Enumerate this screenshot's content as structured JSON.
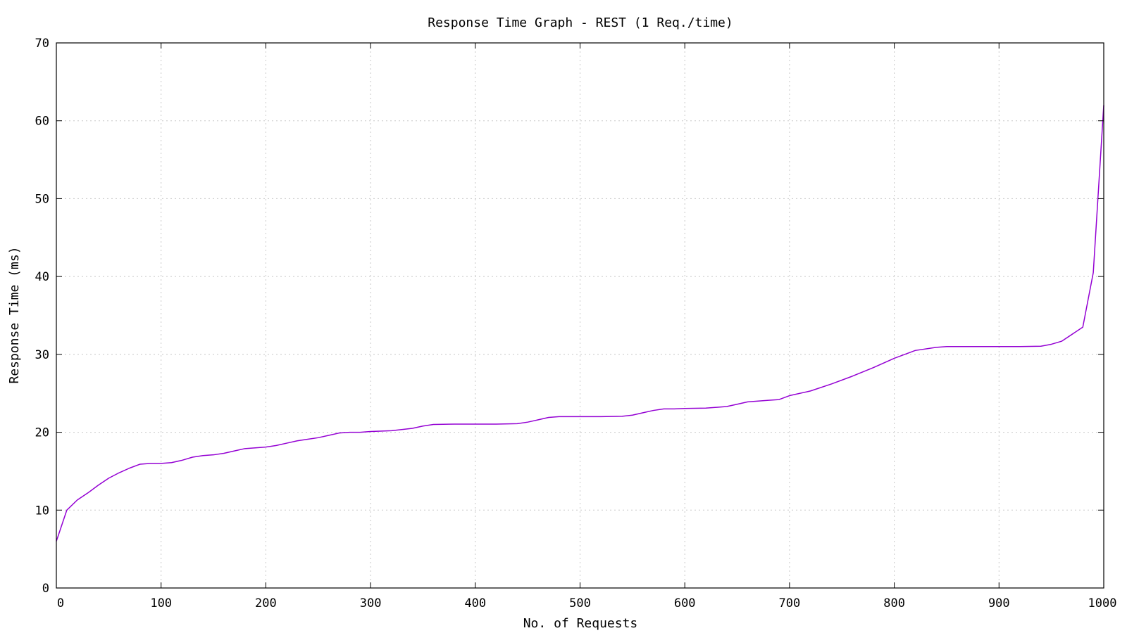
{
  "chart_data": {
    "type": "line",
    "title": "Response Time Graph - REST (1 Req./time)",
    "xlabel": "No. of Requests",
    "ylabel": "Response Time (ms)",
    "xlim": [
      0,
      1000
    ],
    "ylim": [
      0,
      70
    ],
    "xticks": [
      0,
      100,
      200,
      300,
      400,
      500,
      600,
      700,
      800,
      900,
      1000
    ],
    "yticks": [
      0,
      10,
      20,
      30,
      40,
      50,
      60,
      70
    ],
    "grid": true,
    "legend": "none",
    "series": [
      {
        "color": "#9400d3",
        "x": [
          0,
          10,
          20,
          30,
          40,
          50,
          60,
          70,
          80,
          90,
          100,
          110,
          120,
          130,
          140,
          150,
          160,
          170,
          180,
          190,
          200,
          210,
          220,
          230,
          240,
          250,
          260,
          270,
          280,
          290,
          300,
          320,
          340,
          350,
          360,
          380,
          400,
          420,
          440,
          450,
          460,
          470,
          480,
          490,
          500,
          520,
          540,
          550,
          560,
          570,
          580,
          590,
          600,
          620,
          640,
          650,
          660,
          670,
          680,
          690,
          700,
          720,
          740,
          760,
          780,
          800,
          820,
          840,
          850,
          860,
          880,
          900,
          920,
          940,
          950,
          960,
          980,
          990,
          1000
        ],
        "y": [
          6,
          10,
          11.3,
          12.2,
          13.2,
          14.1,
          14.8,
          15.4,
          15.9,
          16,
          16,
          16.1,
          16.4,
          16.8,
          17,
          17.1,
          17.3,
          17.6,
          17.9,
          18,
          18.1,
          18.3,
          18.6,
          18.9,
          19.1,
          19.3,
          19.6,
          19.9,
          20,
          20,
          20.1,
          20.2,
          20.5,
          20.8,
          21,
          21.05,
          21.05,
          21.05,
          21.1,
          21.3,
          21.6,
          21.9,
          22,
          22,
          22,
          22,
          22.05,
          22.2,
          22.5,
          22.8,
          23,
          23,
          23.05,
          23.1,
          23.3,
          23.6,
          23.9,
          24,
          24.1,
          24.2,
          24.7,
          25.3,
          26.2,
          27.2,
          28.3,
          29.5,
          30.5,
          30.9,
          31,
          31,
          31,
          31,
          31,
          31.05,
          31.3,
          31.7,
          33.5,
          40.5,
          62
        ]
      }
    ]
  }
}
